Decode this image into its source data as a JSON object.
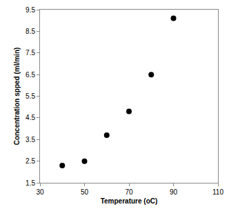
{
  "chart_data": {
    "type": "scatter",
    "x_label": "Temperature (oC)",
    "y_label": "Concentration spped (ml/min)",
    "x": [
      40,
      50,
      60,
      70,
      80,
      90
    ],
    "values": [
      2.3,
      2.5,
      3.7,
      4.8,
      6.5,
      9.1
    ],
    "color": "#000000",
    "marker": "circle",
    "xlim": [
      30,
      110
    ],
    "xticks": [
      30,
      50,
      70,
      90,
      110
    ],
    "ylim": [
      1.5,
      9.5
    ],
    "yticks": [
      1.5,
      2.5,
      3.5,
      4.5,
      5.5,
      6.5,
      7.5,
      8.5,
      9.5
    ],
    "grid": false
  }
}
